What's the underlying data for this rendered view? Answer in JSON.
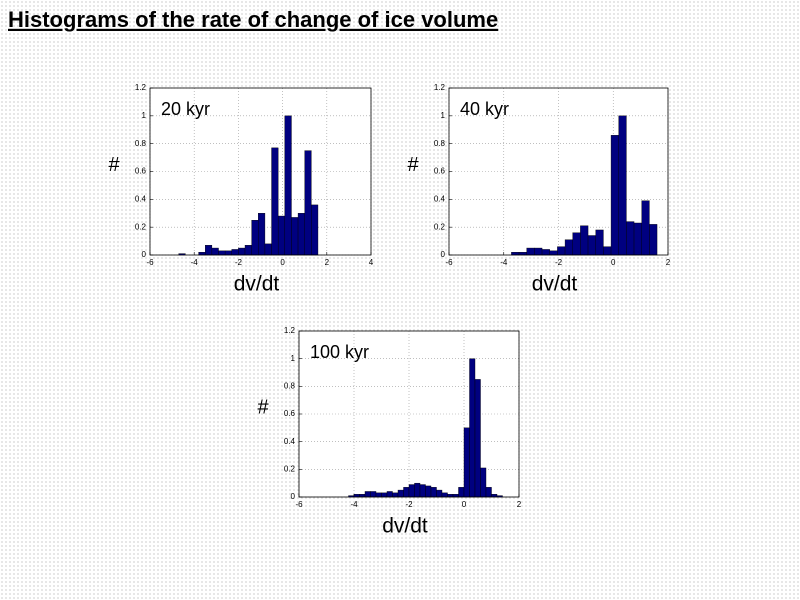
{
  "title": "Histograms of the rate of change of ice volume",
  "chart_data": [
    {
      "type": "histogram",
      "annotation": "20 kyr",
      "x_label": "dv/dt",
      "y_label": "#",
      "color": "#000080",
      "grid": true,
      "xlim": [
        -6,
        4
      ],
      "ylim": [
        0,
        1.2
      ],
      "xticks": [
        -6,
        -4,
        -2,
        0,
        2,
        4
      ],
      "yticks": [
        0,
        0.2,
        0.4,
        0.6,
        0.8,
        1,
        1.2
      ],
      "bins": [
        -5.0,
        -4.7,
        -4.4,
        -4.1,
        -3.8,
        -3.5,
        -3.2,
        -2.9,
        -2.6,
        -2.3,
        -2.0,
        -1.7,
        -1.4,
        -1.1,
        -0.8,
        -0.5,
        -0.2,
        0.1,
        0.4,
        0.7,
        1.0,
        1.3,
        1.6
      ],
      "counts": [
        0,
        0.01,
        0,
        0,
        0.02,
        0.07,
        0.05,
        0.03,
        0.03,
        0.04,
        0.05,
        0.07,
        0.25,
        0.3,
        0.08,
        0.77,
        0.28,
        1.0,
        0.27,
        0.3,
        0.75,
        0.36
      ]
    },
    {
      "type": "histogram",
      "annotation": "40 kyr",
      "x_label": "dv/dt",
      "y_label": "#",
      "color": "#000080",
      "grid": true,
      "xlim": [
        -6,
        2
      ],
      "ylim": [
        0,
        1.2
      ],
      "xticks": [
        -6,
        -4,
        -2,
        0,
        2
      ],
      "yticks": [
        0,
        0.2,
        0.4,
        0.6,
        0.8,
        1,
        1.2
      ],
      "bins": [
        -4.0,
        -3.72,
        -3.44,
        -3.16,
        -2.88,
        -2.6,
        -2.32,
        -2.04,
        -1.76,
        -1.48,
        -1.2,
        -0.92,
        -0.64,
        -0.36,
        -0.08,
        0.2,
        0.48,
        0.76,
        1.04,
        1.32,
        1.6
      ],
      "counts": [
        0,
        0.02,
        0.02,
        0.05,
        0.05,
        0.04,
        0.03,
        0.06,
        0.11,
        0.16,
        0.21,
        0.14,
        0.18,
        0.06,
        0.86,
        1.0,
        0.24,
        0.23,
        0.39,
        0.22
      ]
    },
    {
      "type": "histogram",
      "annotation": "100 kyr",
      "x_label": "dv/dt",
      "y_label": "#",
      "color": "#000080",
      "grid": true,
      "xlim": [
        -6,
        2
      ],
      "ylim": [
        0,
        1.2
      ],
      "xticks": [
        -6,
        -4,
        -2,
        0,
        2
      ],
      "yticks": [
        0,
        0.2,
        0.4,
        0.6,
        0.8,
        1,
        1.2
      ],
      "bins": [
        -4.4,
        -4.2,
        -4.0,
        -3.8,
        -3.6,
        -3.4,
        -3.2,
        -3.0,
        -2.8,
        -2.6,
        -2.4,
        -2.2,
        -2.0,
        -1.8,
        -1.6,
        -1.4,
        -1.2,
        -1.0,
        -0.8,
        -0.6,
        -0.4,
        -0.2,
        0.0,
        0.2,
        0.4,
        0.6,
        0.8,
        1.0,
        1.2,
        1.4,
        1.6
      ],
      "counts": [
        0,
        0.01,
        0.02,
        0.02,
        0.04,
        0.04,
        0.03,
        0.03,
        0.04,
        0.03,
        0.05,
        0.07,
        0.09,
        0.1,
        0.09,
        0.08,
        0.07,
        0.05,
        0.03,
        0.02,
        0.02,
        0.07,
        0.5,
        1.0,
        0.85,
        0.21,
        0.07,
        0.02,
        0.01,
        0
      ]
    }
  ]
}
